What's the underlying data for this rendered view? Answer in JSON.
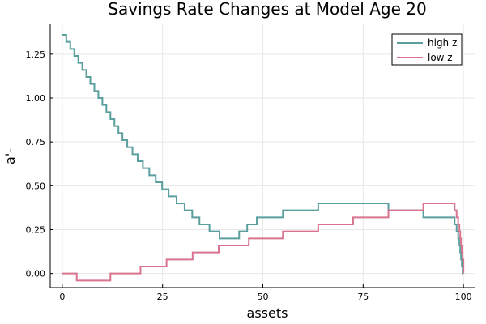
{
  "chart_data": {
    "type": "line",
    "title": "Savings Rate Changes at Model Age 20",
    "xlabel": "assets",
    "ylabel": "a'-",
    "xlim": [
      -3,
      103
    ],
    "ylim": [
      -0.08,
      1.42
    ],
    "xticks": [
      0,
      25,
      50,
      75,
      100
    ],
    "xtick_labels": [
      "0",
      "25",
      "50",
      "75",
      "100"
    ],
    "yticks": [
      0,
      0.25,
      0.5,
      0.75,
      1.0,
      1.25
    ],
    "ytick_labels": [
      "0.00",
      "0.25",
      "0.50",
      "0.75",
      "1.00",
      "1.25"
    ],
    "grid": true,
    "legend_position": "top-right",
    "series": [
      {
        "name": "high z",
        "color": "#5a9e9e",
        "step": true,
        "x": [
          0,
          1,
          2,
          3,
          4,
          5,
          6,
          7,
          8,
          9,
          10,
          11,
          12,
          13,
          14,
          15,
          16.2,
          17.5,
          18.8,
          20.1,
          21.7,
          23.3,
          24.9,
          26.5,
          28.5,
          30.5,
          32.4,
          34.2,
          36.7,
          39.2,
          41.6,
          44.1,
          46.1,
          48.5,
          55.0,
          63.8,
          72.5,
          81.3,
          90.0,
          97.8,
          98.3,
          98.7,
          99.0,
          99.2,
          99.4,
          99.6,
          99.8,
          100
        ],
        "y": [
          1.36,
          1.32,
          1.28,
          1.24,
          1.2,
          1.16,
          1.12,
          1.08,
          1.04,
          1.0,
          0.96,
          0.92,
          0.88,
          0.84,
          0.8,
          0.76,
          0.72,
          0.68,
          0.64,
          0.6,
          0.56,
          0.52,
          0.48,
          0.44,
          0.4,
          0.36,
          0.32,
          0.28,
          0.24,
          0.2,
          0.2,
          0.24,
          0.28,
          0.32,
          0.36,
          0.4,
          0.4,
          0.36,
          0.32,
          0.28,
          0.24,
          0.2,
          0.16,
          0.12,
          0.08,
          0.04,
          0.0,
          0.0
        ]
      },
      {
        "name": "low z",
        "color": "#d9748f",
        "step": true,
        "x": [
          0,
          3.6,
          12.0,
          19.5,
          26.0,
          32.5,
          39.0,
          46.5,
          55.0,
          63.8,
          72.5,
          81.3,
          90.0,
          97.8,
          98.3,
          98.7,
          99.0,
          99.2,
          99.4,
          99.6,
          99.8,
          100
        ],
        "y": [
          0.0,
          -0.04,
          0.0,
          0.04,
          0.08,
          0.12,
          0.16,
          0.2,
          0.24,
          0.28,
          0.32,
          0.36,
          0.4,
          0.36,
          0.32,
          0.28,
          0.24,
          0.2,
          0.16,
          0.12,
          0.08,
          0.0
        ]
      }
    ]
  }
}
